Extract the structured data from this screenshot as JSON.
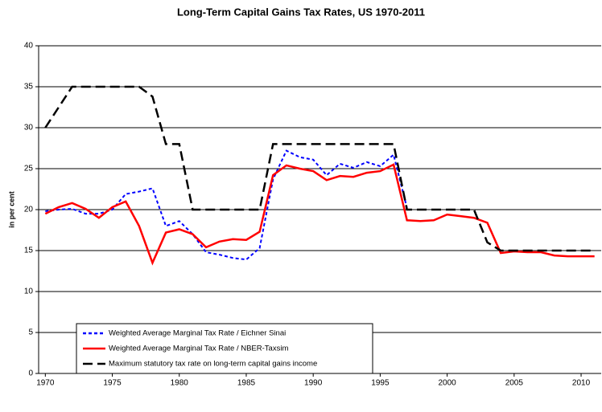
{
  "chart_data": {
    "type": "line",
    "title": "Long-Term Capital Gains Tax Rates, US 1970-2011",
    "y_label": "in per cent",
    "x": [
      1970,
      1971,
      1972,
      1973,
      1974,
      1975,
      1976,
      1977,
      1978,
      1979,
      1980,
      1981,
      1982,
      1983,
      1984,
      1985,
      1986,
      1987,
      1988,
      1989,
      1990,
      1991,
      1992,
      1993,
      1994,
      1995,
      1996,
      1997,
      1998,
      1999,
      2000,
      2001,
      2002,
      2003,
      2004,
      2005,
      2006,
      2007,
      2008,
      2009,
      2010,
      2011
    ],
    "series": [
      {
        "name": "Weighted Average Marginal Tax Rate / Eichner Sinai",
        "color": "#0000ff",
        "dash": "4,3",
        "values": [
          19.8,
          20.0,
          20.1,
          19.5,
          19.5,
          20.0,
          21.9,
          22.2,
          22.6,
          18.0,
          18.6,
          17.0,
          14.8,
          14.5,
          14.1,
          13.9,
          15.3,
          23.7,
          27.2,
          26.4,
          26.1,
          24.2,
          25.6,
          25.1,
          25.8,
          25.3,
          26.7,
          20.2,
          null,
          null,
          null,
          null,
          null,
          null,
          null,
          null,
          null,
          null,
          null,
          null,
          null,
          null
        ]
      },
      {
        "name": "Weighted Average Marginal Tax Rate / NBER-Taxsim",
        "color": "#ff0000",
        "dash": "none",
        "values": [
          19.5,
          20.3,
          20.8,
          20.1,
          19.0,
          20.3,
          21.0,
          18.0,
          13.5,
          17.2,
          17.6,
          17.0,
          15.4,
          16.1,
          16.4,
          16.3,
          17.3,
          24.2,
          25.4,
          25.0,
          24.7,
          23.6,
          24.1,
          24.0,
          24.5,
          24.7,
          25.5,
          18.7,
          18.6,
          18.7,
          19.4,
          19.2,
          19.0,
          18.4,
          14.7,
          14.9,
          14.8,
          14.8,
          14.4,
          14.3,
          14.3,
          14.3
        ]
      },
      {
        "name": "Maximum statutory tax rate on long-term capital gains income",
        "color": "#000000",
        "dash": "12,6",
        "values": [
          30,
          32.5,
          35,
          35,
          35,
          35,
          35,
          35,
          33.8,
          28,
          28,
          20,
          20,
          20,
          20,
          20,
          20,
          28,
          28,
          28,
          28,
          28,
          28,
          28,
          28,
          28,
          28,
          20,
          20,
          20,
          20,
          20,
          20,
          16,
          15,
          15,
          15,
          15,
          15,
          15,
          15,
          15
        ]
      }
    ],
    "xlim": [
      1969.5,
      2011.5
    ],
    "xticks": [
      1970,
      1975,
      1980,
      1985,
      1990,
      1995,
      2000,
      2005,
      2010
    ],
    "ylim": [
      0,
      40
    ],
    "yticks": [
      0,
      5,
      10,
      15,
      20,
      25,
      30,
      35,
      40
    ],
    "grid": true,
    "legend": "bottom-left"
  }
}
